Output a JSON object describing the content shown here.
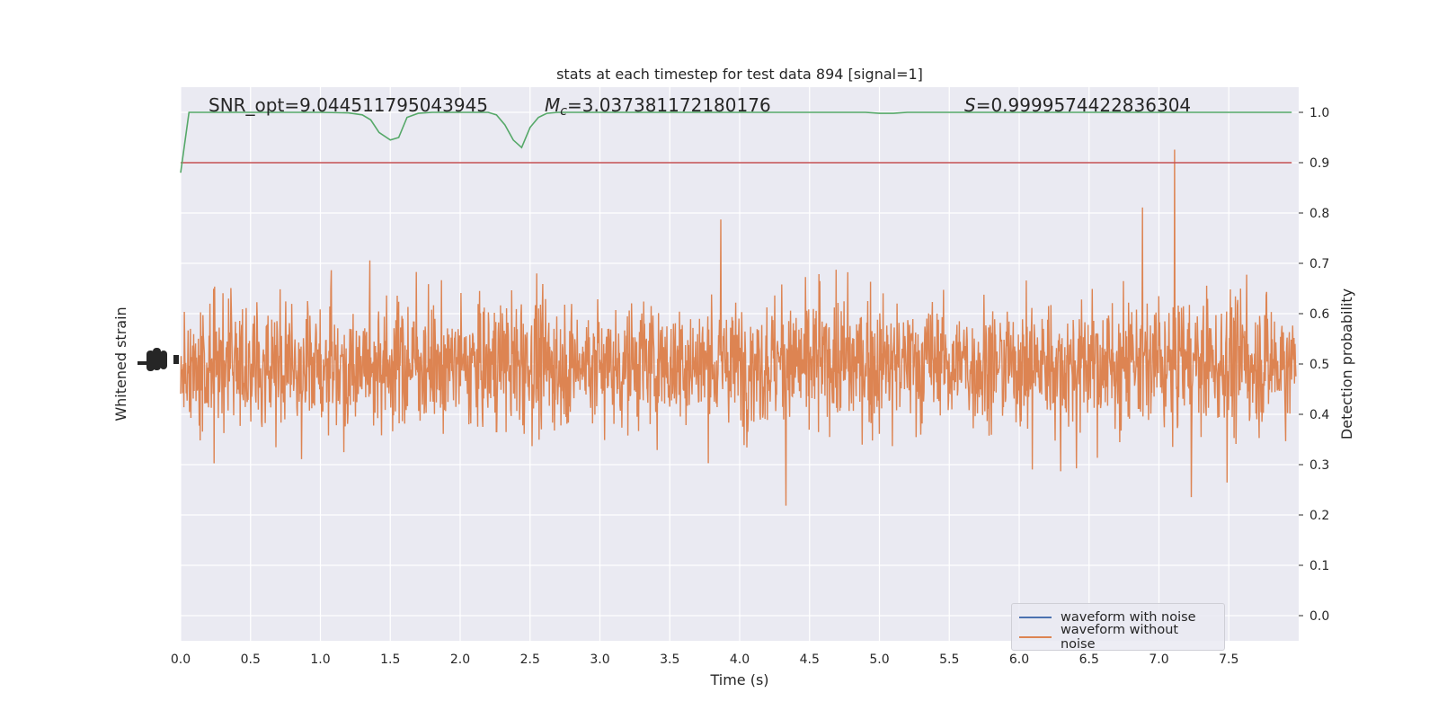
{
  "chart_data": {
    "type": "line",
    "title": "stats at each timestep for test data 894 [signal=1]",
    "xlabel": "Time (s)",
    "ylabel_left": "Whitened strain",
    "ylabel_right": "Detection probability",
    "xlim": [
      0.0,
      8.0
    ],
    "ylim_right": [
      -0.05,
      1.05
    ],
    "x_ticks": [
      "0.0",
      "0.5",
      "1.0",
      "1.5",
      "2.0",
      "2.5",
      "3.0",
      "3.5",
      "4.0",
      "4.5",
      "5.0",
      "5.5",
      "6.0",
      "6.5",
      "7.0",
      "7.5"
    ],
    "y_ticks_right": [
      "0.0",
      "0.1",
      "0.2",
      "0.3",
      "0.4",
      "0.5",
      "0.6",
      "0.7",
      "0.8",
      "0.9",
      "1.0"
    ],
    "threshold": 0.9,
    "grid": true,
    "legend_placement": "lower-right",
    "annotations": {
      "snr": "SNR_opt=9.044511795043945",
      "mc_symbol": "M",
      "mc_sub": "c",
      "mc_value": "=3.037381172180176",
      "s_symbol": "S",
      "s_value": "=0.9999574422836304"
    },
    "series": [
      {
        "name": "waveform with noise",
        "color": "#4c72b0",
        "noise_envelope": 0.55
      },
      {
        "name": "waveform without noise",
        "color": "#dd8452",
        "noise_envelope": 0.55
      },
      {
        "color": "#55a868",
        "x": [
          0.0,
          0.06,
          0.2,
          0.4,
          0.6,
          0.8,
          1.0,
          1.2,
          1.3,
          1.36,
          1.42,
          1.5,
          1.56,
          1.62,
          1.7,
          1.8,
          2.0,
          2.2,
          2.26,
          2.32,
          2.38,
          2.44,
          2.5,
          2.56,
          2.62,
          2.7,
          2.8,
          3.0,
          4.0,
          4.5,
          4.9,
          5.0,
          5.1,
          5.2,
          5.3,
          5.5,
          6.0,
          7.0,
          7.95
        ],
        "y": [
          0.88,
          1.0,
          1.0,
          1.0,
          1.0,
          1.0,
          1.0,
          0.999,
          0.995,
          0.985,
          0.96,
          0.945,
          0.95,
          0.99,
          0.998,
          1.0,
          1.0,
          1.0,
          0.995,
          0.975,
          0.945,
          0.93,
          0.97,
          0.99,
          0.998,
          1.0,
          1.0,
          1.0,
          1.0,
          1.0,
          1.0,
          0.998,
          0.998,
          1.0,
          1.0,
          1.0,
          1.0,
          1.0,
          1.0
        ]
      },
      {
        "color": "#c44e52",
        "x": [
          0.0,
          7.95
        ],
        "y": [
          0.9,
          0.9
        ]
      }
    ]
  }
}
